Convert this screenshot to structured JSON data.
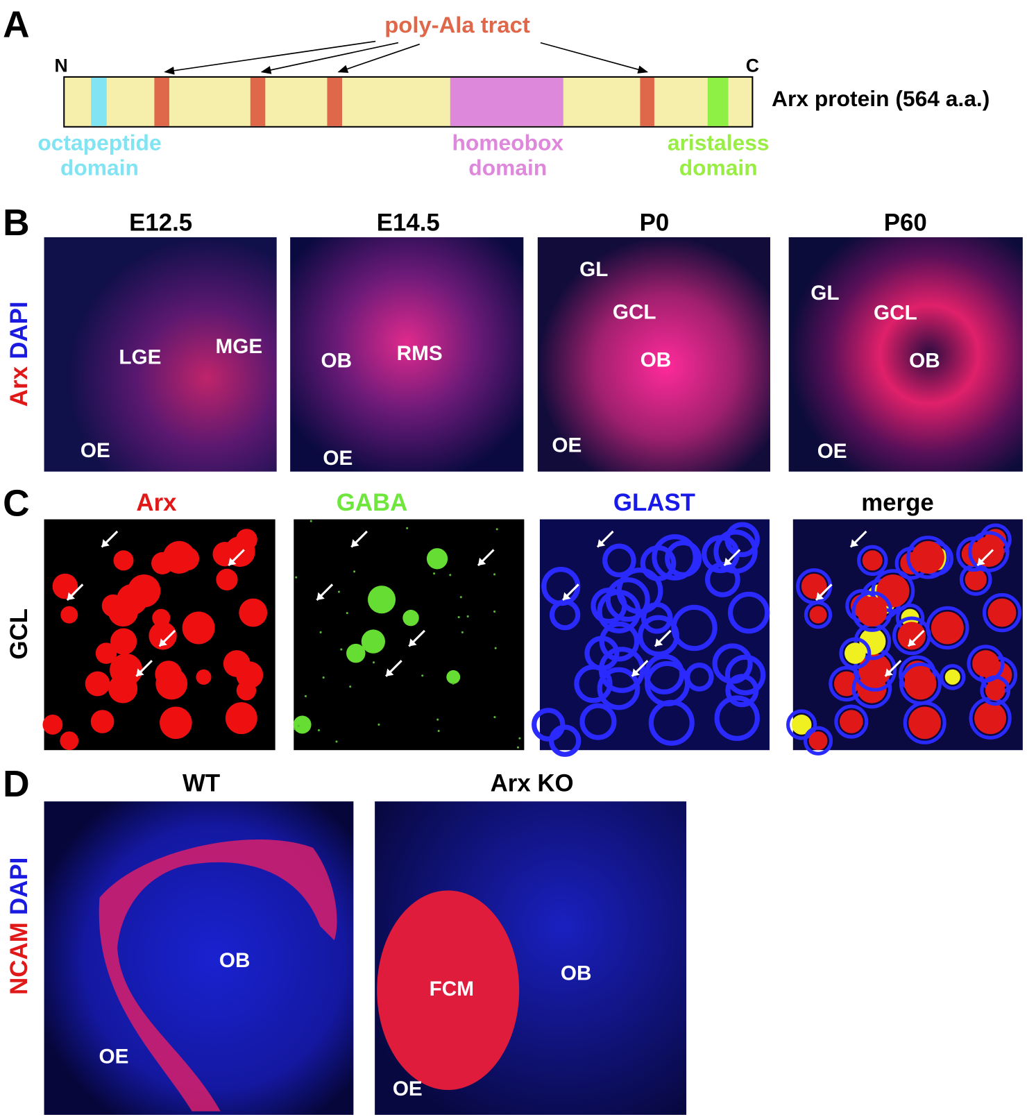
{
  "panel_a": {
    "label": "A",
    "poly_ala": "poly-Ala tract",
    "n_term": "N",
    "c_term": "C",
    "protein": "Arx protein (564 a.a.)",
    "domains": [
      {
        "line1": "octapeptide",
        "line2": "domain"
      },
      {
        "line1": "homeobox",
        "line2": "domain"
      },
      {
        "line1": "aristaless",
        "line2": "domain"
      }
    ]
  },
  "panel_b": {
    "label": "B",
    "stain": [
      "Arx",
      "DAPI"
    ],
    "images": [
      {
        "title": "E12.5",
        "labels": [
          "LGE",
          "MGE",
          "OE"
        ]
      },
      {
        "title": "E14.5",
        "labels": [
          "OB",
          "RMS",
          "OE"
        ]
      },
      {
        "title": "P0",
        "labels": [
          "GL",
          "GCL",
          "OB",
          "OE"
        ]
      },
      {
        "title": "P60",
        "labels": [
          "GL",
          "GCL",
          "OB",
          "OE"
        ]
      }
    ]
  },
  "panel_c": {
    "label": "C",
    "region": "GCL",
    "titles": [
      "Arx",
      "GABA",
      "GLAST",
      "merge"
    ]
  },
  "panel_d": {
    "label": "D",
    "stain": [
      "NCAM",
      "DAPI"
    ],
    "images": [
      {
        "title": "WT",
        "labels": [
          "OB",
          "OE"
        ]
      },
      {
        "title": "Arx KO",
        "labels": [
          "FCM",
          "OB",
          "OE"
        ]
      }
    ]
  }
}
